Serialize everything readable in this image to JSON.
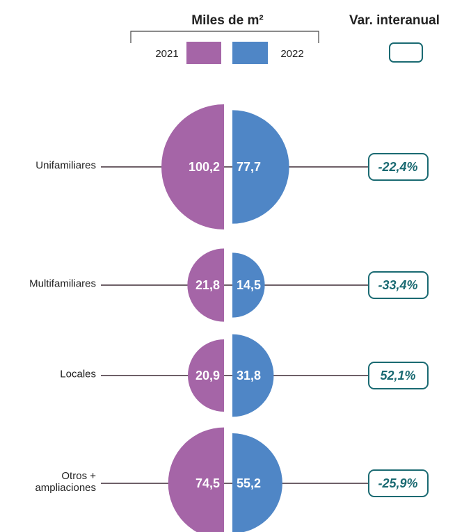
{
  "chart_data": {
    "type": "split-semicircle",
    "legend_title": "Miles de m²",
    "change_title": "Var. interanual",
    "categories": [
      "Unifamiliares",
      "Multifamiliares",
      "Locales",
      "Otros + ampliaciones"
    ],
    "series": [
      {
        "name": "2021",
        "color": "#a565a7",
        "values": [
          100.2,
          21.8,
          20.9,
          74.5
        ],
        "value_labels": [
          "100,2",
          "21,8",
          "20,9",
          "74,5"
        ]
      },
      {
        "name": "2022",
        "color": "#4f86c6",
        "values": [
          77.7,
          14.5,
          31.8,
          55.2
        ],
        "value_labels": [
          "77,7",
          "14,5",
          "31,8",
          "55,2"
        ]
      }
    ],
    "changes": {
      "color": "#1a6a72",
      "values": [
        -22.4,
        -33.4,
        52.1,
        -25.9
      ],
      "value_labels": [
        "-22,4%",
        "-33,4%",
        "52,1%",
        "-25,9%"
      ]
    }
  }
}
